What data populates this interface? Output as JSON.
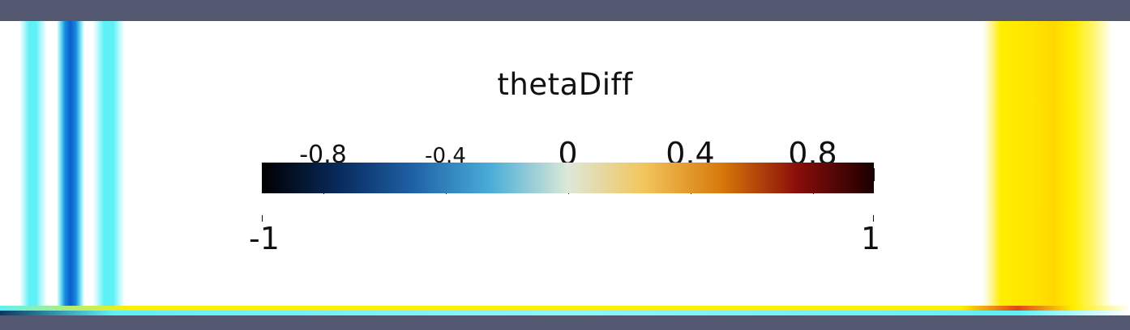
{
  "scalar_bar": {
    "title": "thetaDiff",
    "min_label": "-1",
    "max_label": "1",
    "range": [
      -1,
      1
    ],
    "tick_labels": [
      {
        "value": -0.8,
        "text": "-0.8"
      },
      {
        "value": -0.4,
        "text": "-0.4"
      },
      {
        "value": 0,
        "text": "0"
      },
      {
        "value": 0.4,
        "text": "0.4"
      },
      {
        "value": 0.8,
        "text": "0.8"
      }
    ],
    "colormap": "blue-white-orange-black diverging",
    "colors": {
      "stops": [
        "#000000",
        "#082a5c",
        "#1f63a8",
        "#4aaed8",
        "#dde8d8",
        "#f2c55c",
        "#d87a0a",
        "#8a0d0a",
        "#1a0000"
      ]
    }
  },
  "scene_colors": {
    "background": "#535770",
    "viewport": "#ffffff",
    "cyan": "#59eef6",
    "blue": "#0f73d8",
    "yellow": "#ffee00"
  }
}
